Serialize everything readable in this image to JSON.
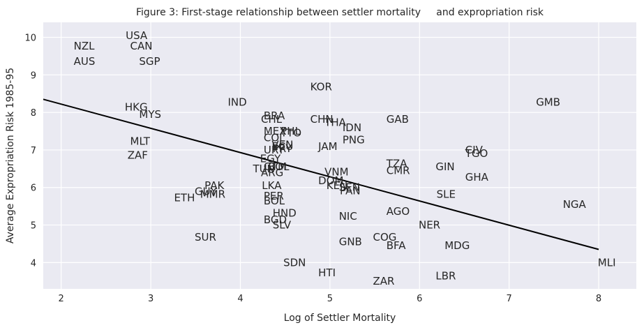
{
  "chart_data": {
    "type": "scatter",
    "title": "Figure 3: First-stage relationship between settler mortality     and expropriation risk",
    "xlabel": "Log of Settler Mortality",
    "ylabel": "Average Expropriation Risk 1985-95",
    "xlim": [
      1.8,
      8.42
    ],
    "ylim": [
      3.3,
      10.4
    ],
    "xticks": [
      2,
      3,
      4,
      5,
      6,
      7,
      8
    ],
    "yticks": [
      4,
      5,
      6,
      7,
      8,
      9,
      10
    ],
    "grid": true,
    "fit_line": {
      "x": [
        1.8,
        8.0
      ],
      "y": [
        8.35,
        4.35
      ]
    },
    "points": [
      {
        "label": "USA",
        "x": 2.72,
        "y": 10.05
      },
      {
        "label": "NZL",
        "x": 2.14,
        "y": 9.77
      },
      {
        "label": "CAN",
        "x": 2.77,
        "y": 9.77
      },
      {
        "label": "AUS",
        "x": 2.14,
        "y": 9.36
      },
      {
        "label": "SGP",
        "x": 2.87,
        "y": 9.36
      },
      {
        "label": "KOR",
        "x": 4.78,
        "y": 8.68
      },
      {
        "label": "GMB",
        "x": 7.3,
        "y": 8.27
      },
      {
        "label": "IND",
        "x": 3.86,
        "y": 8.27
      },
      {
        "label": "HKG",
        "x": 2.71,
        "y": 8.14
      },
      {
        "label": "MYS",
        "x": 2.87,
        "y": 7.95
      },
      {
        "label": "BRA",
        "x": 4.26,
        "y": 7.91
      },
      {
        "label": "CHL",
        "x": 4.23,
        "y": 7.82
      },
      {
        "label": "CHN",
        "x": 4.78,
        "y": 7.82
      },
      {
        "label": "GAB",
        "x": 5.63,
        "y": 7.82
      },
      {
        "label": "THA",
        "x": 4.94,
        "y": 7.73
      },
      {
        "label": "IDN",
        "x": 5.14,
        "y": 7.59
      },
      {
        "label": "MEX",
        "x": 4.26,
        "y": 7.5
      },
      {
        "label": "PHL",
        "x": 4.45,
        "y": 7.5
      },
      {
        "label": "TTO",
        "x": 4.45,
        "y": 7.45
      },
      {
        "label": "COL",
        "x": 4.26,
        "y": 7.32
      },
      {
        "label": "PNG",
        "x": 5.14,
        "y": 7.27
      },
      {
        "label": "MLT",
        "x": 2.77,
        "y": 7.23
      },
      {
        "label": "JAM",
        "x": 4.87,
        "y": 7.09
      },
      {
        "label": "VEN",
        "x": 4.35,
        "y": 7.14
      },
      {
        "label": "ECU",
        "x": 4.35,
        "y": 7.09
      },
      {
        "label": "PRY",
        "x": 4.36,
        "y": 7.04
      },
      {
        "label": "URY",
        "x": 4.26,
        "y": 7.0
      },
      {
        "label": "CIV",
        "x": 6.51,
        "y": 7.0
      },
      {
        "label": "TGO",
        "x": 6.51,
        "y": 6.91
      },
      {
        "label": "ZAF",
        "x": 2.74,
        "y": 6.86
      },
      {
        "label": "EGY",
        "x": 4.22,
        "y": 6.77
      },
      {
        "label": "TZA",
        "x": 5.63,
        "y": 6.64
      },
      {
        "label": "GTM",
        "x": 4.26,
        "y": 6.55
      },
      {
        "label": "BOL",
        "x": 4.31,
        "y": 6.55
      },
      {
        "label": "GIN",
        "x": 6.18,
        "y": 6.55
      },
      {
        "label": "TUN",
        "x": 4.14,
        "y": 6.5
      },
      {
        "label": "CMR",
        "x": 5.63,
        "y": 6.45
      },
      {
        "label": "ARG",
        "x": 4.23,
        "y": 6.39
      },
      {
        "label": "VNM",
        "x": 4.94,
        "y": 6.41
      },
      {
        "label": "GHA",
        "x": 6.51,
        "y": 6.27
      },
      {
        "label": "DOM",
        "x": 4.87,
        "y": 6.18
      },
      {
        "label": "KEN",
        "x": 4.96,
        "y": 6.05
      },
      {
        "label": "SEN",
        "x": 5.1,
        "y": 6.0
      },
      {
        "label": "LKA",
        "x": 4.24,
        "y": 6.05
      },
      {
        "label": "PAK",
        "x": 3.6,
        "y": 6.05
      },
      {
        "label": "PAN",
        "x": 5.11,
        "y": 5.91
      },
      {
        "label": "GUY",
        "x": 3.49,
        "y": 5.89
      },
      {
        "label": "MMR",
        "x": 3.55,
        "y": 5.82
      },
      {
        "label": "SLE",
        "x": 6.19,
        "y": 5.82
      },
      {
        "label": "ETH",
        "x": 3.26,
        "y": 5.73
      },
      {
        "label": "PER",
        "x": 4.26,
        "y": 5.77
      },
      {
        "label": "BOL",
        "x": 4.26,
        "y": 5.64
      },
      {
        "label": "NGA",
        "x": 7.6,
        "y": 5.55
      },
      {
        "label": "AGO",
        "x": 5.63,
        "y": 5.36
      },
      {
        "label": "HND",
        "x": 4.36,
        "y": 5.32
      },
      {
        "label": "NIC",
        "x": 5.1,
        "y": 5.23
      },
      {
        "label": "BGD",
        "x": 4.26,
        "y": 5.14
      },
      {
        "label": "SLV",
        "x": 4.36,
        "y": 5.0
      },
      {
        "label": "NER",
        "x": 5.99,
        "y": 5.0
      },
      {
        "label": "SUR",
        "x": 3.49,
        "y": 4.68
      },
      {
        "label": "COG",
        "x": 5.48,
        "y": 4.68
      },
      {
        "label": "GNB",
        "x": 5.1,
        "y": 4.55
      },
      {
        "label": "BFA",
        "x": 5.63,
        "y": 4.45
      },
      {
        "label": "MDG",
        "x": 6.28,
        "y": 4.45
      },
      {
        "label": "MLI",
        "x": 7.99,
        "y": 4.0
      },
      {
        "label": "SDN",
        "x": 4.48,
        "y": 4.0
      },
      {
        "label": "HTI",
        "x": 4.87,
        "y": 3.73
      },
      {
        "label": "LBR",
        "x": 6.18,
        "y": 3.64
      },
      {
        "label": "ZAR",
        "x": 5.48,
        "y": 3.5
      }
    ]
  }
}
